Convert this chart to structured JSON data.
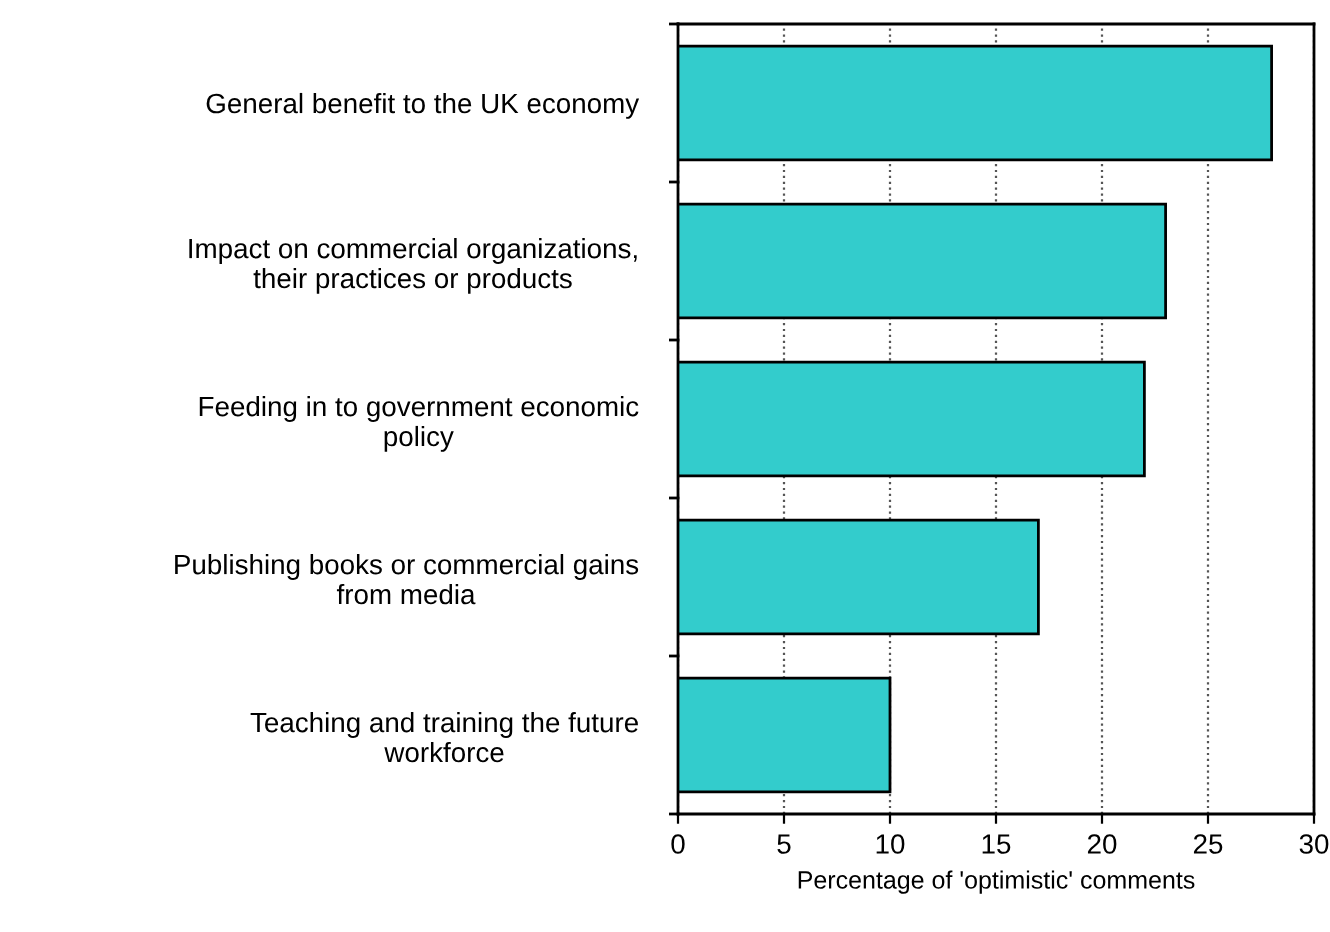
{
  "chart_data": {
    "type": "bar",
    "orientation": "horizontal",
    "categories": [
      "General benefit to the UK economy",
      "Impact on commercial organizations,\ntheir practices or products",
      "Feeding in to government economic\npolicy",
      "Publishing books or commercial gains\nfrom media",
      "Teaching and training the future\nworkforce"
    ],
    "values": [
      28,
      23,
      22,
      17,
      10
    ],
    "color": "#33cccc",
    "xlabel": "Percentage of 'optimistic' comments",
    "xlim": [
      0,
      30
    ],
    "xticks": [
      0,
      5,
      10,
      15,
      20,
      25,
      30
    ],
    "grid": "x",
    "line_style": "dotted"
  }
}
